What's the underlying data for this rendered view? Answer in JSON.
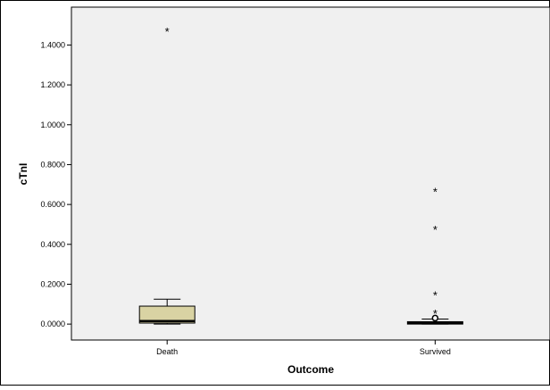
{
  "chart_data": {
    "type": "boxplot",
    "xlabel": "Outcome",
    "ylabel": "cTnI",
    "ylim": [
      -0.08,
      1.59
    ],
    "y_ticks": [
      "0.0000",
      "0.2000",
      "0.4000",
      "0.6000",
      "0.8000",
      "1.0000",
      "1.2000",
      "1.4000"
    ],
    "y_tick_values": [
      0,
      0.2,
      0.4,
      0.6,
      0.8,
      1.0,
      1.2,
      1.4
    ],
    "grid": false,
    "colors": {
      "box_fill": "#d9d3a3",
      "plot_background": "#f0f0f0",
      "frame": "#000000"
    },
    "categories": [
      "Death",
      "Survived"
    ],
    "boxes": [
      {
        "category": "Death",
        "whisker_low": 0.0,
        "q1": 0.005,
        "median": 0.015,
        "q3": 0.09,
        "whisker_high": 0.125,
        "outliers": [],
        "extremes": [
          1.47
        ]
      },
      {
        "category": "Survived",
        "whisker_low": 0.0,
        "q1": 0.0,
        "median": 0.005,
        "q3": 0.012,
        "whisker_high": 0.025,
        "outliers": [
          0.03
        ],
        "extremes": [
          0.665,
          0.475,
          0.145,
          0.055
        ]
      }
    ]
  }
}
